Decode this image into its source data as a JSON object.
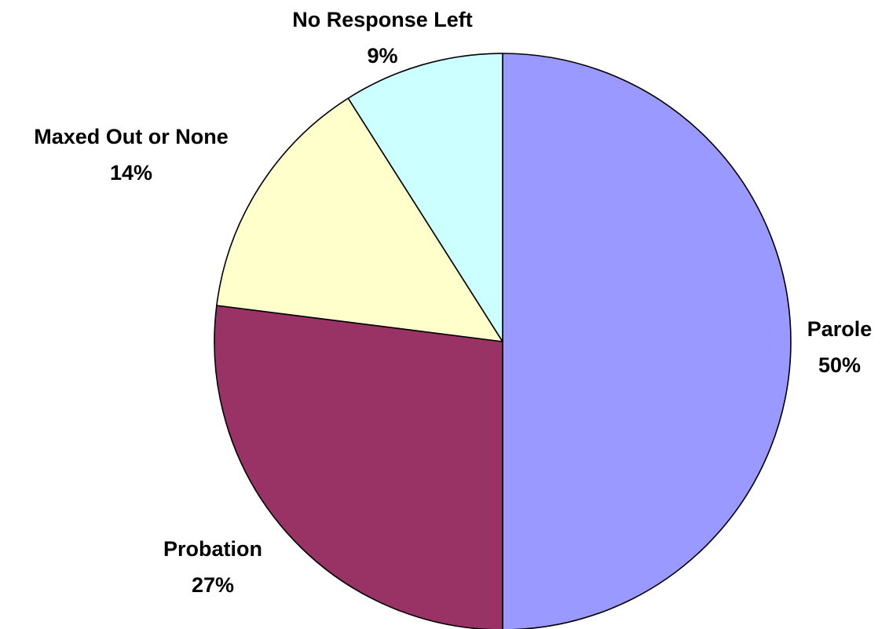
{
  "chart_data": {
    "type": "pie",
    "title": "",
    "slices": [
      {
        "label": "Parole",
        "value": 50,
        "percent_label": "50%",
        "color": "#9999FF"
      },
      {
        "label": "Probation",
        "value": 27,
        "percent_label": "27%",
        "color": "#993366"
      },
      {
        "label": "Maxed Out or None",
        "value": 14,
        "percent_label": "14%",
        "color": "#FFFFCC"
      },
      {
        "label": "No Response Left",
        "value": 9,
        "percent_label": "9%",
        "color": "#CCFFFF"
      }
    ],
    "start": "12 o'clock",
    "direction": "clockwise",
    "legend": "none; labels placed outside each slice"
  }
}
